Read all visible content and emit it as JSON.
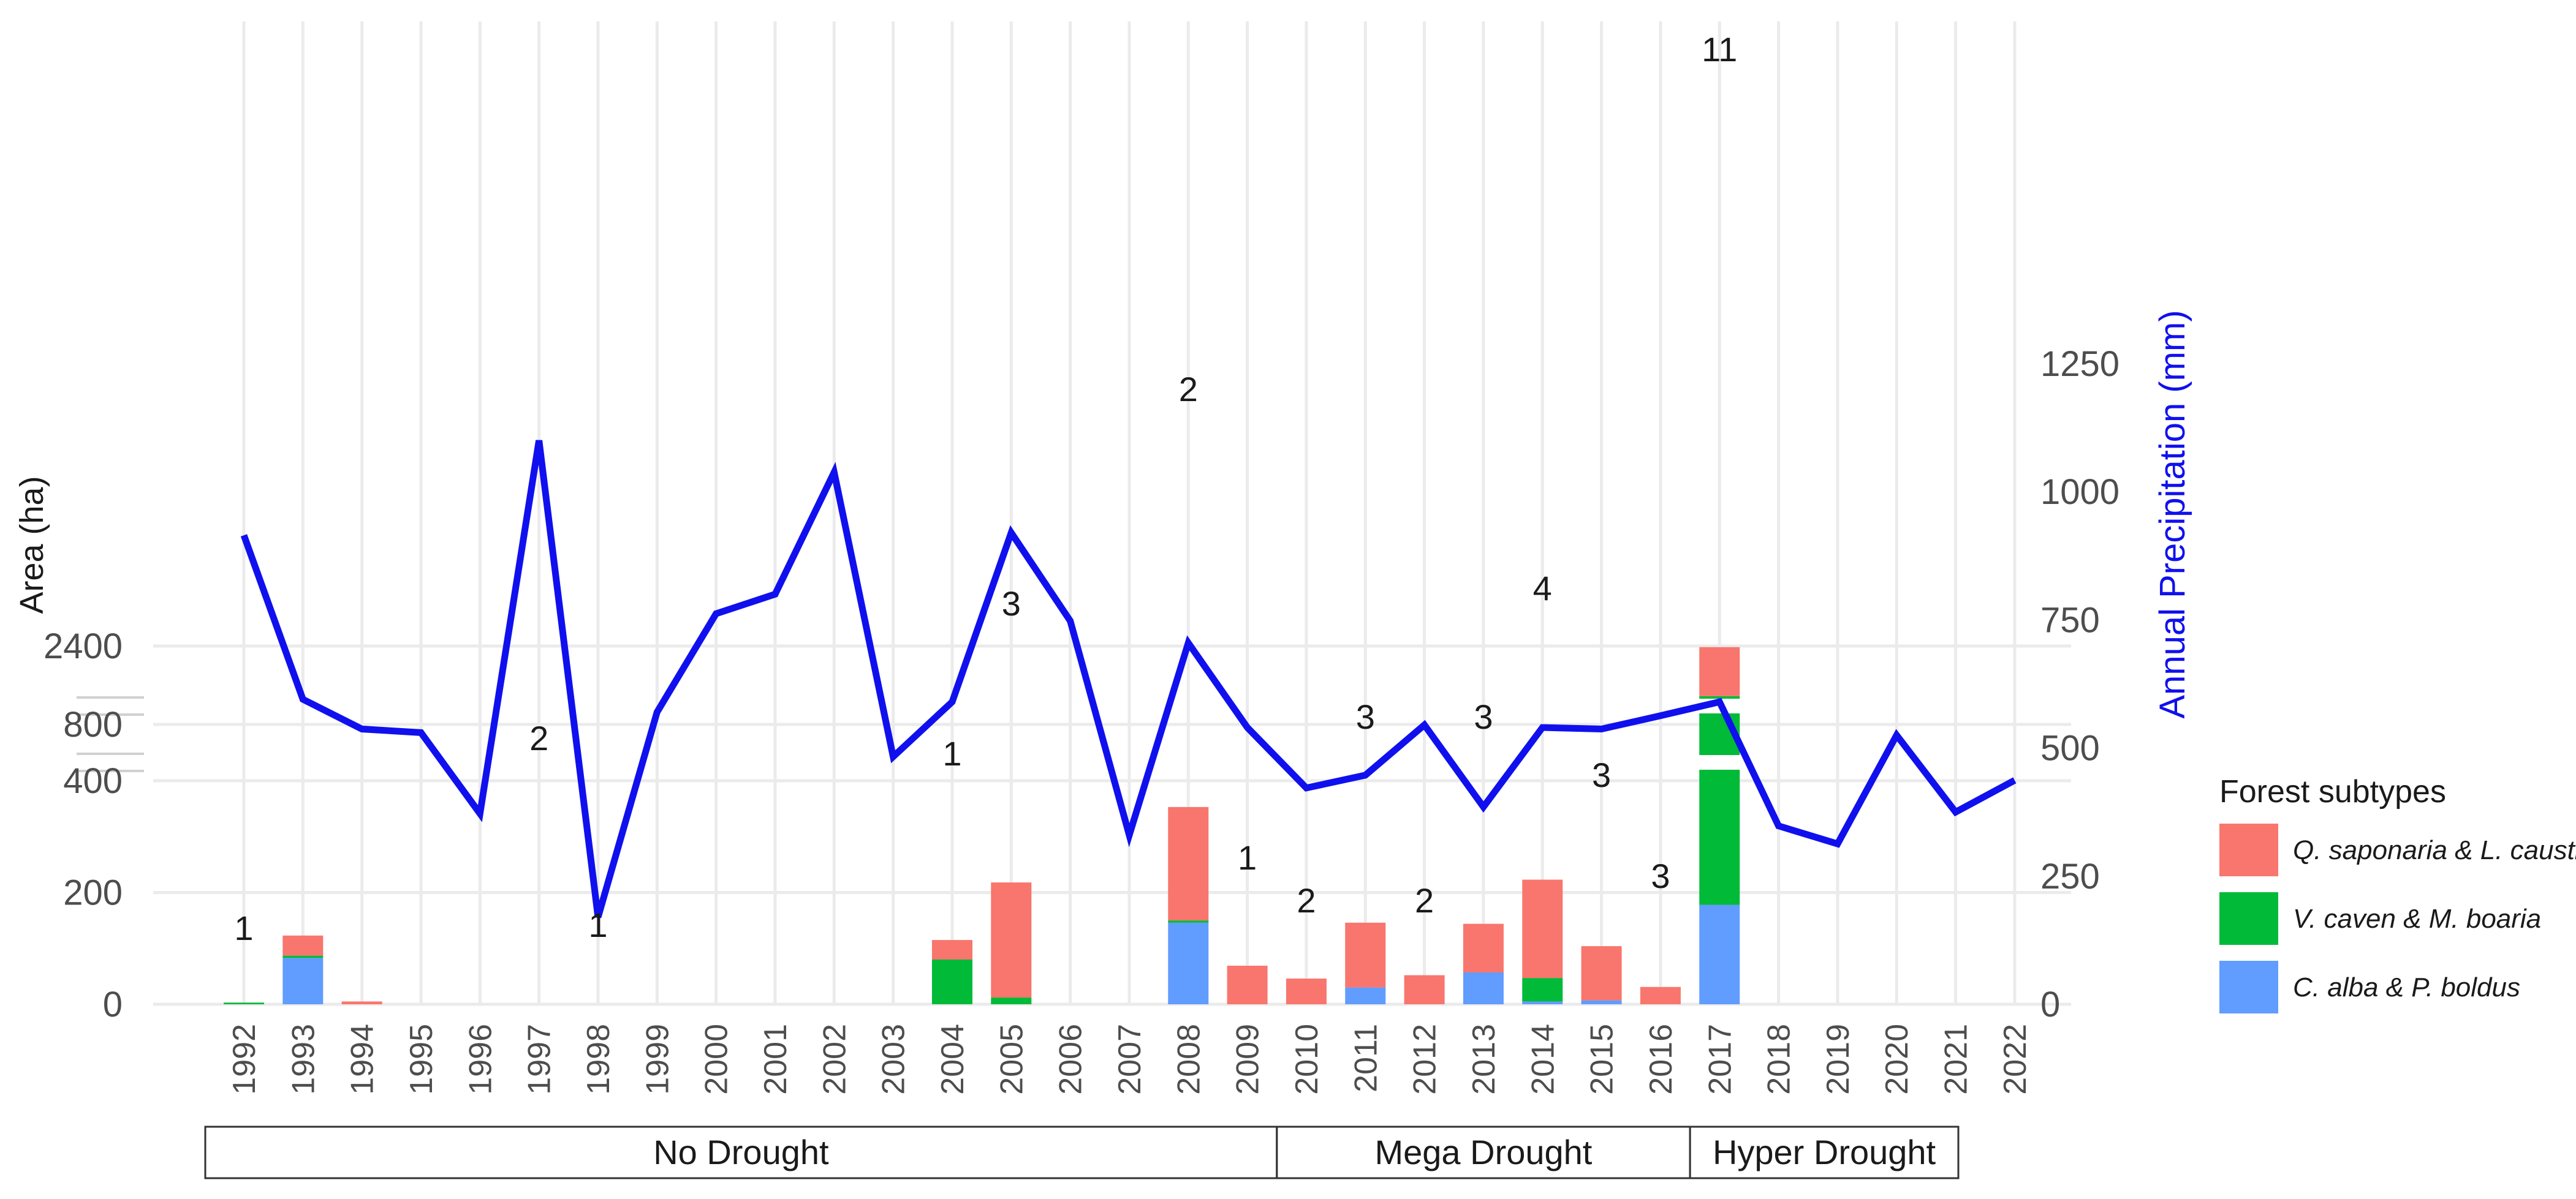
{
  "chart_data": {
    "type": "bar",
    "subtype": "stacked bar with secondary-axis line",
    "years": [
      "1992",
      "1993",
      "1994",
      "1995",
      "1996",
      "1997",
      "1998",
      "1999",
      "2000",
      "2001",
      "2002",
      "2003",
      "2004",
      "2005",
      "2006",
      "2007",
      "2008",
      "2009",
      "2010",
      "2011",
      "2012",
      "2013",
      "2014",
      "2015",
      "2016",
      "2017",
      "2018",
      "2019",
      "2020",
      "2021",
      "2022"
    ],
    "ylabel": "Area (ha)",
    "y2label": "Annual Precipitation (mm)",
    "yticks": [
      "0",
      "200",
      "400",
      "800",
      "2400"
    ],
    "y2ticks": [
      "0",
      "250",
      "500",
      "750",
      "1000",
      "1250"
    ],
    "y2lim": [
      0,
      1250
    ],
    "series": [
      {
        "name": "C. alba & P. boldus",
        "color": "#619CFF",
        "values": [
          0,
          83,
          0,
          0,
          0,
          0,
          0,
          0,
          0,
          0,
          0,
          0,
          0,
          0,
          0,
          0,
          146,
          0,
          0,
          30,
          0,
          57,
          5,
          7,
          0,
          178,
          0,
          0,
          0,
          0,
          0
        ]
      },
      {
        "name": "V. caven & M. boaria",
        "color": "#00BA38",
        "values": [
          3,
          4,
          0,
          0,
          0,
          0,
          0,
          0,
          0,
          0,
          0,
          0,
          80,
          12,
          0,
          0,
          4,
          0,
          0,
          0,
          0,
          0,
          42,
          0,
          0,
          1200,
          0,
          0,
          0,
          0,
          0
        ]
      },
      {
        "name": "Q. saponaria & L. caustica",
        "color": "#F8766D",
        "values": [
          0,
          36,
          5,
          0,
          0,
          0,
          0,
          0,
          0,
          0,
          0,
          0,
          35,
          206,
          0,
          0,
          203,
          69,
          46,
          116,
          52,
          87,
          176,
          97,
          31,
          1000,
          0,
          0,
          0,
          0,
          0
        ]
      }
    ],
    "counts": [
      "1",
      "",
      "",
      "",
      "",
      "2",
      "1",
      "",
      "",
      "",
      "",
      "",
      "1",
      "3",
      "",
      "",
      "2",
      "1",
      "2",
      "3",
      "2",
      "3",
      "4",
      "3",
      "3",
      "11",
      "",
      "",
      "",
      "",
      ""
    ],
    "precipitation": [
      915,
      595,
      537,
      530,
      372,
      1100,
      170,
      570,
      762,
      800,
      1038,
      483,
      590,
      920,
      748,
      330,
      705,
      540,
      422,
      447,
      545,
      385,
      540,
      537,
      563,
      590,
      348,
      313,
      525,
      375,
      437
    ],
    "drought_periods": [
      {
        "label": "No Drought",
        "from": "1992",
        "to": "2009"
      },
      {
        "label": "Mega Drought",
        "from": "2010",
        "to": "2016"
      },
      {
        "label": "Hyper Drought",
        "from": "2017",
        "to": "2022"
      }
    ],
    "legend": {
      "title": "Forest subtypes",
      "position": "right",
      "items": [
        "Q. saponaria & L. caustica",
        "V. caven & M. boaria",
        "C. alba & P. boldus"
      ]
    },
    "colors": {
      "line": "#1010ee",
      "y2label": "#1010ee",
      "q_saponaria": "#F8766D",
      "v_caven": "#00BA38",
      "c_alba": "#619CFF"
    }
  }
}
